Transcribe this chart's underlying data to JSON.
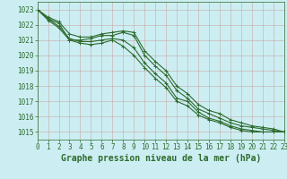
{
  "title": "Graphe pression niveau de la mer (hPa)",
  "bg_color": "#cceef2",
  "grid_color": "#aad4d8",
  "line_color": "#2d6a2d",
  "xlim": [
    0,
    23
  ],
  "ylim": [
    1014.5,
    1023.5
  ],
  "yticks": [
    1015,
    1016,
    1017,
    1018,
    1019,
    1020,
    1021,
    1022,
    1023
  ],
  "xticks": [
    0,
    1,
    2,
    3,
    4,
    5,
    6,
    7,
    8,
    9,
    10,
    11,
    12,
    13,
    14,
    15,
    16,
    17,
    18,
    19,
    20,
    21,
    22,
    23
  ],
  "series": [
    [
      1023.0,
      1022.4,
      1022.1,
      1021.0,
      1021.0,
      1021.1,
      1021.3,
      1021.3,
      1021.5,
      1021.3,
      1020.0,
      1019.3,
      1018.7,
      1017.7,
      1017.2,
      1016.5,
      1016.2,
      1015.9,
      1015.6,
      1015.4,
      1015.3,
      1015.2,
      1015.1,
      1015.0
    ],
    [
      1023.0,
      1022.3,
      1021.8,
      1021.0,
      1020.8,
      1020.7,
      1020.8,
      1021.0,
      1020.6,
      1020.0,
      1019.2,
      1018.5,
      1017.9,
      1017.0,
      1016.7,
      1016.1,
      1015.8,
      1015.6,
      1015.3,
      1015.1,
      1015.0,
      1015.0,
      1015.0,
      1015.0
    ],
    [
      1023.0,
      1022.4,
      1021.9,
      1021.1,
      1020.9,
      1020.9,
      1021.0,
      1021.1,
      1021.0,
      1020.5,
      1019.5,
      1018.8,
      1018.2,
      1017.2,
      1017.0,
      1016.3,
      1015.9,
      1015.7,
      1015.4,
      1015.2,
      1015.1,
      1015.0,
      1015.0,
      1015.0
    ],
    [
      1023.0,
      1022.5,
      1022.2,
      1021.4,
      1021.2,
      1021.2,
      1021.4,
      1021.5,
      1021.6,
      1021.5,
      1020.3,
      1019.6,
      1019.0,
      1018.0,
      1017.5,
      1016.8,
      1016.4,
      1016.2,
      1015.8,
      1015.6,
      1015.4,
      1015.3,
      1015.2,
      1015.0
    ]
  ],
  "marker": "+",
  "markersize": 3.5,
  "linewidth": 0.8,
  "title_fontsize": 7.0,
  "tick_fontsize": 5.5
}
